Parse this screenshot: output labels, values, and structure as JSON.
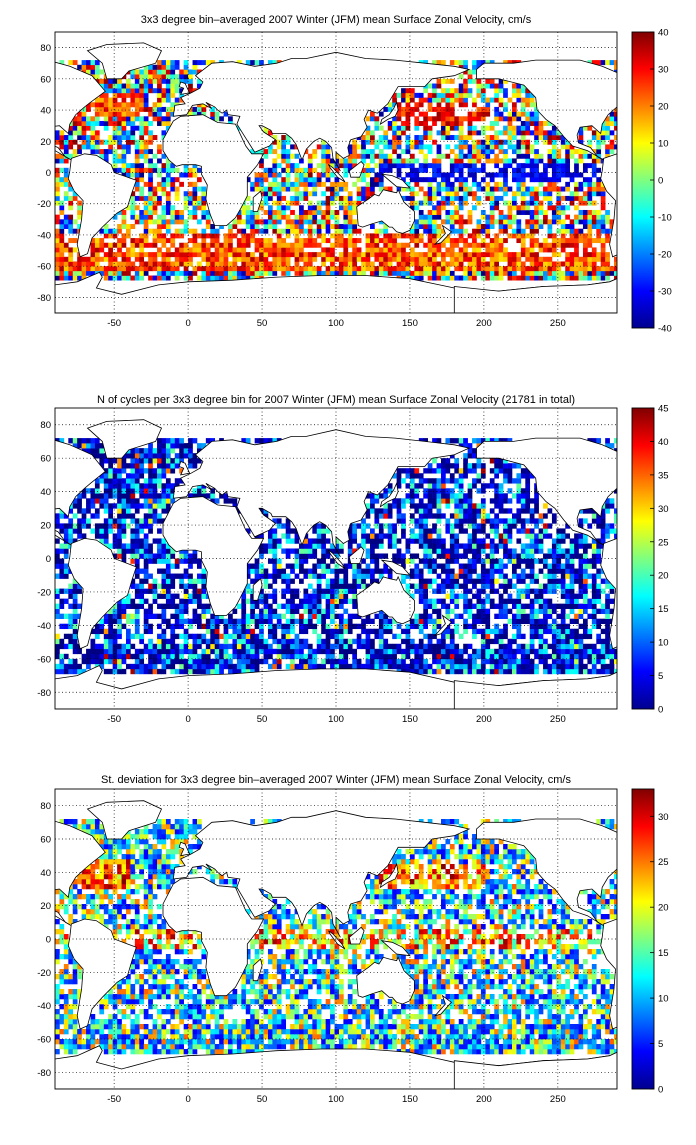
{
  "colormap": "jet",
  "chart_data": [
    {
      "type": "heatmap",
      "title": "3x3 degree bin–averaged 2007 Winter (JFM) mean Surface Zonal Velocity, cm/s",
      "xlabel": "",
      "ylabel": "",
      "xlim": [
        -90,
        290
      ],
      "ylim": [
        -90,
        90
      ],
      "xticks": [
        -50,
        0,
        50,
        100,
        150,
        200,
        250
      ],
      "yticks": [
        -80,
        -60,
        -40,
        -20,
        0,
        20,
        40,
        60,
        80
      ],
      "grid": true,
      "bin_size_deg": 3,
      "colorbar": {
        "min": -40,
        "max": 40,
        "ticks": [
          -40,
          -30,
          -20,
          -10,
          0,
          10,
          20,
          30,
          40
        ]
      },
      "field": "zonal_velocity"
    },
    {
      "type": "heatmap",
      "title": "N of cycles per 3x3 degree bin for 2007 Winter (JFM) mean Surface Zonal Velocity (21781 in total)",
      "xlabel": "",
      "ylabel": "",
      "xlim": [
        -90,
        290
      ],
      "ylim": [
        -90,
        90
      ],
      "xticks": [
        -50,
        0,
        50,
        100,
        150,
        200,
        250
      ],
      "yticks": [
        -80,
        -60,
        -40,
        -20,
        0,
        20,
        40,
        60,
        80
      ],
      "grid": true,
      "bin_size_deg": 3,
      "total_cycles": 21781,
      "colorbar": {
        "min": 0,
        "max": 45,
        "ticks": [
          0,
          5,
          10,
          15,
          20,
          25,
          30,
          35,
          40,
          45
        ]
      },
      "field": "cycle_count"
    },
    {
      "type": "heatmap",
      "title": "St. deviation for 3x3 degree bin–averaged 2007 Winter (JFM) mean Surface Zonal Velocity, cm/s",
      "xlabel": "",
      "ylabel": "",
      "xlim": [
        -90,
        290
      ],
      "ylim": [
        -90,
        90
      ],
      "xticks": [
        -50,
        0,
        50,
        100,
        150,
        200,
        250
      ],
      "yticks": [
        -80,
        -60,
        -40,
        -20,
        0,
        20,
        40,
        60,
        80
      ],
      "grid": true,
      "bin_size_deg": 3,
      "colorbar": {
        "min": 0,
        "max": 33,
        "ticks": [
          0,
          5,
          10,
          15,
          20,
          25,
          30
        ]
      },
      "field": "std_deviation"
    }
  ]
}
